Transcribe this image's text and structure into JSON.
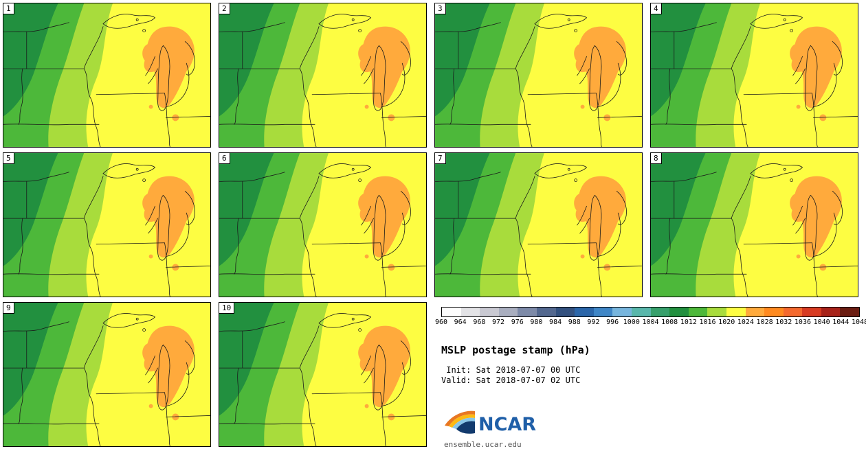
{
  "panels": [
    "1",
    "2",
    "3",
    "4",
    "5",
    "6",
    "7",
    "8",
    "9",
    "10"
  ],
  "colorbar": {
    "ticks": [
      "960",
      "964",
      "968",
      "972",
      "976",
      "980",
      "984",
      "988",
      "992",
      "996",
      "1000",
      "1004",
      "1008",
      "1012",
      "1016",
      "1020",
      "1024",
      "1028",
      "1032",
      "1036",
      "1040",
      "1044",
      "1048"
    ],
    "colors": [
      "#fdfdfd",
      "#e3e3e6",
      "#c9c9d2",
      "#a9aebf",
      "#7d8aa8",
      "#53688f",
      "#33517f",
      "#2b66a9",
      "#3f86c6",
      "#77b5dd",
      "#59b7ab",
      "#37a06c",
      "#22903f",
      "#4db83a",
      "#a8dc3c",
      "#fdfd42",
      "#ffaa3c",
      "#ff8a1f",
      "#f4692e",
      "#d83b22",
      "#a8231a",
      "#6b1d12"
    ]
  },
  "title": "MSLP postage stamp (hPa)",
  "init_line": " Init: Sat 2018-07-07 00 UTC",
  "valid_line": "Valid: Sat 2018-07-07 02 UTC",
  "logo": {
    "wordmark": "NCAR",
    "url": "ensemble.ucar.edu",
    "navy": "#123a6d",
    "blue": "#1f5fa8",
    "orange": "#e87722",
    "yellow": "#fdb913",
    "light_blue": "#8ac6e8"
  },
  "map_colors": {
    "dark_green": "#22903f",
    "green": "#4db83a",
    "light_green": "#a8dc3c",
    "yellow": "#fdfd42",
    "orange": "#ffaa3c",
    "boundary": "#1a1a1a"
  }
}
